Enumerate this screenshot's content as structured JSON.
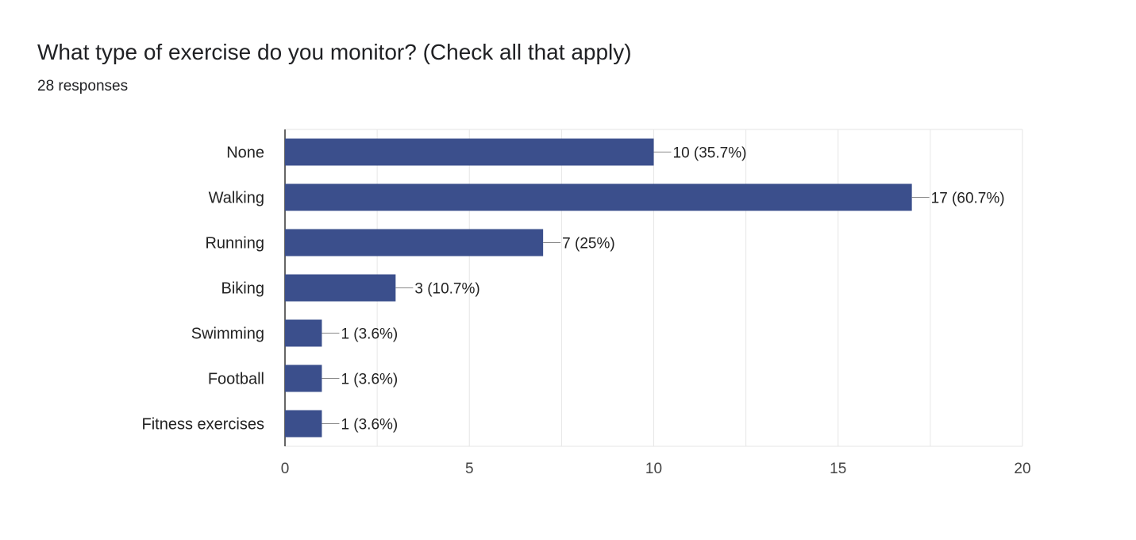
{
  "question": {
    "title": "What type of exercise do you monitor? (Check all that apply)",
    "responses": "28 responses"
  },
  "colors": {
    "bar": "#3b4f8c",
    "grid": "#e6e6e6",
    "axis": "#333333",
    "leader": "#888888"
  },
  "chart_data": {
    "type": "bar",
    "orientation": "horizontal",
    "title": "What type of exercise do you monitor? (Check all that apply)",
    "subtitle": "28 responses",
    "categories": [
      "None",
      "Walking",
      "Running",
      "Biking",
      "Swimming",
      "Football",
      "Fitness exercises"
    ],
    "values": [
      10,
      17,
      7,
      3,
      1,
      1,
      1
    ],
    "data_labels": [
      "10 (35.7%)",
      "17 (60.7%)",
      "7 (25%)",
      "3 (10.7%)",
      "1 (3.6%)",
      "1 (3.6%)",
      "1 (3.6%)"
    ],
    "xlim": [
      0,
      20
    ],
    "xticks": [
      0,
      5,
      10,
      15,
      20
    ],
    "xlabel": "",
    "ylabel": "",
    "grid": true,
    "legend": "none"
  }
}
